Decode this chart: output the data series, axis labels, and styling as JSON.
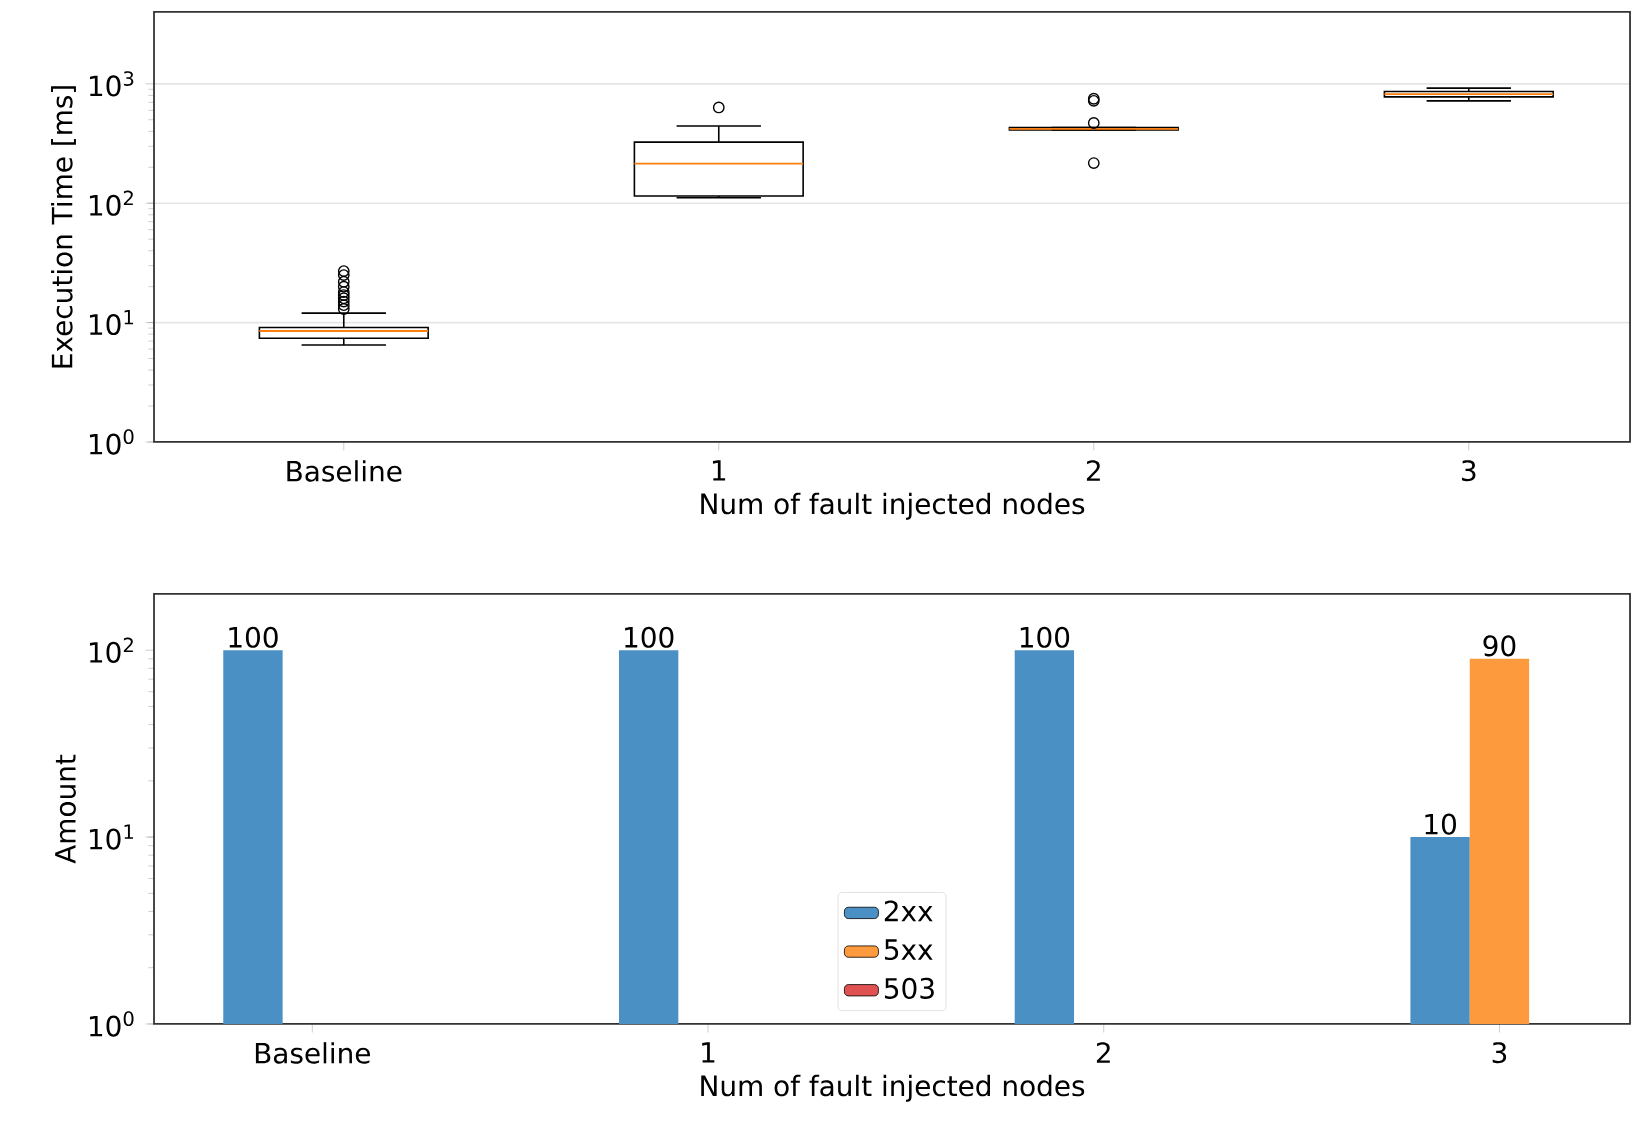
{
  "chart_data": [
    {
      "type": "box",
      "categories": [
        "Baseline",
        "1",
        "2",
        "3"
      ],
      "xlabel": "Num of fault injected nodes",
      "ylabel": "Execution Time [ms]",
      "log": "y",
      "grid": "y",
      "ylim": [
        1,
        4000
      ],
      "yticks": [
        {
          "value": 1,
          "label": "10$^{0}$"
        },
        {
          "value": 10,
          "label": "10$^{1}$"
        },
        {
          "value": 100,
          "label": "10$^{2}$"
        },
        {
          "value": 1000,
          "label": "10$^{3}$"
        }
      ],
      "boxes": [
        {
          "low": 6.5,
          "q1": 7.4,
          "median": 8.5,
          "q3": 9.1,
          "high": 12,
          "outliers": [
            13,
            14,
            15,
            16,
            17,
            18,
            20,
            22,
            25,
            27
          ]
        },
        {
          "low": 111,
          "q1": 115,
          "median": 215,
          "q3": 325,
          "high": 443,
          "outliers": [
            634
          ]
        },
        {
          "low": 410,
          "q1": 410,
          "median": 420,
          "q3": 430,
          "high": 430,
          "outliers": [
            217,
            470,
            720,
            750
          ]
        },
        {
          "low": 720,
          "q1": 778,
          "median": 820,
          "q3": 863,
          "high": 920
        }
      ]
    },
    {
      "type": "bar",
      "categories": [
        "Baseline",
        "1",
        "2",
        "3"
      ],
      "xlabel": "Num of fault injected nodes",
      "ylabel": "Amount",
      "log": "y",
      "ylim": [
        1,
        200
      ],
      "yticks": [
        {
          "value": 1,
          "label": "10$^{0}$"
        },
        {
          "value": 10,
          "label": "10$^{1}$"
        },
        {
          "value": 100,
          "label": "10$^{2}$"
        }
      ],
      "data_labels": true,
      "legend": "bottom",
      "series": [
        {
          "name": "2xx",
          "color": "#4a90c4",
          "values": [
            100,
            100,
            100,
            10
          ]
        },
        {
          "name": "5xx",
          "color": "#fe9a3e",
          "values": [
            null,
            null,
            null,
            90
          ]
        },
        {
          "name": "503",
          "color": "#e05252",
          "values": [
            null,
            null,
            null,
            null
          ]
        }
      ]
    }
  ]
}
